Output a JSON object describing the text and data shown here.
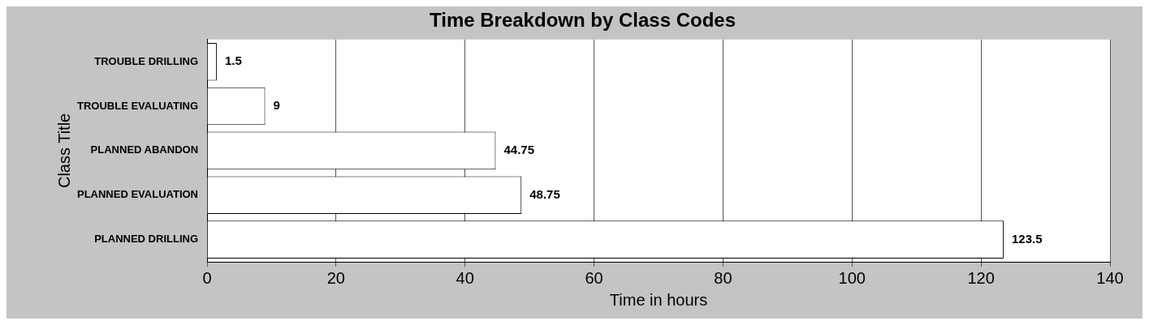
{
  "chart_data": {
    "type": "bar",
    "orientation": "horizontal",
    "title": "Time Breakdown by Class Codes",
    "xlabel": "Time in hours",
    "ylabel": "Class Title",
    "categories": [
      "TROUBLE DRILLING",
      "TROUBLE EVALUATING",
      "PLANNED ABANDON",
      "PLANNED EVALUATION",
      "PLANNED DRILLING"
    ],
    "values": [
      1.5,
      9,
      44.75,
      48.75,
      123.5
    ],
    "color": "#ffffff",
    "xlim": [
      0,
      140
    ],
    "xticks": [
      0,
      20,
      40,
      60,
      80,
      100,
      120,
      140
    ],
    "grid": "x",
    "data_labels": true,
    "legend": false
  }
}
